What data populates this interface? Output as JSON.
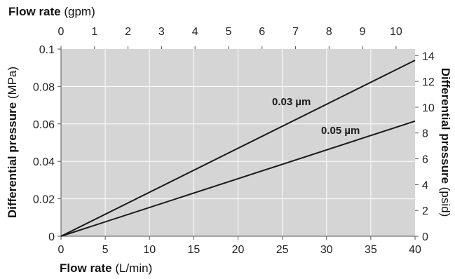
{
  "chart_data": {
    "type": "line",
    "x": [
      0,
      40
    ],
    "series": [
      {
        "name": "0.03 µm",
        "values": [
          0,
          0.094
        ]
      },
      {
        "name": "0.05 µm",
        "values": [
          0,
          0.0615
        ]
      }
    ],
    "xlim": [
      0,
      40
    ],
    "ylim": [
      0,
      0.1
    ],
    "x_ticks": [
      "0",
      "5",
      "10",
      "15",
      "20",
      "25",
      "30",
      "35",
      "40"
    ],
    "y_ticks": [
      "0",
      "0.02",
      "0.04",
      "0.06",
      "0.08",
      "0.1"
    ],
    "xlabel": {
      "bold": "Flow rate",
      "unit": " (L/min)"
    },
    "ylabel": {
      "bold": "Differential pressure",
      "unit": " (MPa)"
    },
    "x2label": {
      "bold": "Flow rate",
      "unit": " (gpm)"
    },
    "y2label": {
      "bold": "Differential pressure",
      "unit": " (psid)"
    },
    "x2lim": [
      0,
      10.567
    ],
    "x2_ticks": [
      "0",
      "1",
      "2",
      "3",
      "4",
      "5",
      "6",
      "7",
      "8",
      "9",
      "10"
    ],
    "y2lim": [
      0,
      14.504
    ],
    "y2_ticks": [
      "0",
      "2",
      "4",
      "6",
      "8",
      "10",
      "12",
      "14"
    ],
    "grid": true,
    "colors": {
      "plot_bg": "#d5d5d5",
      "grid": "#ffffff",
      "line": "#1a1a1a"
    }
  }
}
